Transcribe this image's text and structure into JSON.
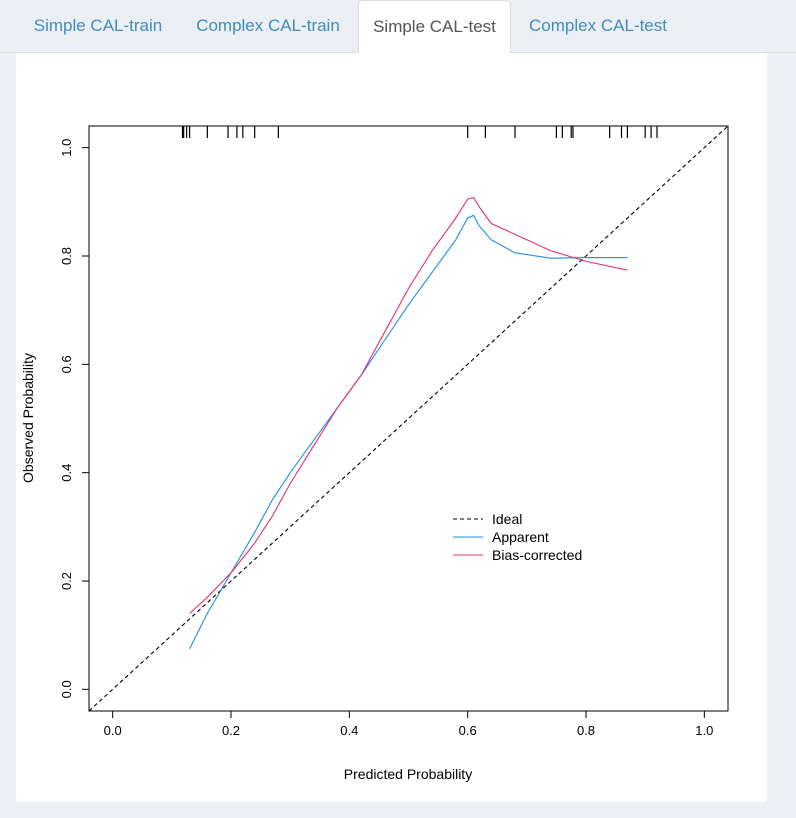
{
  "tabs": [
    {
      "label": "Simple CAL-train",
      "active": false
    },
    {
      "label": "Complex CAL-train",
      "active": false
    },
    {
      "label": "Simple CAL-test",
      "active": true
    },
    {
      "label": "Complex CAL-test",
      "active": false
    }
  ],
  "chart_data": {
    "type": "line",
    "xlabel": "Predicted Probability",
    "ylabel": "Observed  Probability",
    "xlim": [
      -0.04,
      1.04
    ],
    "ylim": [
      -0.04,
      1.04
    ],
    "xticks": [
      "0.0",
      "0.2",
      "0.4",
      "0.6",
      "0.8",
      "1.0"
    ],
    "yticks": [
      "0.0",
      "0.2",
      "0.4",
      "0.6",
      "0.8",
      "1.0"
    ],
    "legend": [
      "Ideal",
      "Apparent",
      "Bias-corrected"
    ],
    "series": [
      {
        "name": "Ideal",
        "color": "#000000",
        "dashed": true,
        "x": [
          -0.04,
          1.04
        ],
        "y": [
          -0.04,
          1.04
        ]
      },
      {
        "name": "Apparent",
        "color": "#1e90dc",
        "x": [
          0.13,
          0.16,
          0.2,
          0.24,
          0.27,
          0.3,
          0.34,
          0.38,
          0.42,
          0.46,
          0.5,
          0.54,
          0.58,
          0.6,
          0.61,
          0.62,
          0.64,
          0.68,
          0.74,
          0.8,
          0.87
        ],
        "y": [
          0.075,
          0.14,
          0.215,
          0.29,
          0.35,
          0.4,
          0.46,
          0.52,
          0.58,
          0.645,
          0.71,
          0.77,
          0.83,
          0.87,
          0.875,
          0.855,
          0.83,
          0.806,
          0.796,
          0.797,
          0.797
        ]
      },
      {
        "name": "Bias-corrected",
        "color": "#e0307a",
        "x": [
          0.13,
          0.16,
          0.2,
          0.24,
          0.27,
          0.3,
          0.34,
          0.38,
          0.42,
          0.46,
          0.5,
          0.54,
          0.58,
          0.6,
          0.61,
          0.62,
          0.64,
          0.7,
          0.74,
          0.8,
          0.87
        ],
        "y": [
          0.14,
          0.17,
          0.215,
          0.27,
          0.32,
          0.38,
          0.45,
          0.52,
          0.58,
          0.66,
          0.74,
          0.81,
          0.87,
          0.905,
          0.908,
          0.89,
          0.86,
          0.83,
          0.81,
          0.79,
          0.774
        ]
      }
    ],
    "rug": [
      0.118,
      0.12,
      0.125,
      0.13,
      0.16,
      0.195,
      0.21,
      0.22,
      0.24,
      0.28,
      0.6,
      0.63,
      0.68,
      0.75,
      0.76,
      0.775,
      0.778,
      0.84,
      0.86,
      0.87,
      0.9,
      0.91,
      0.92
    ]
  }
}
